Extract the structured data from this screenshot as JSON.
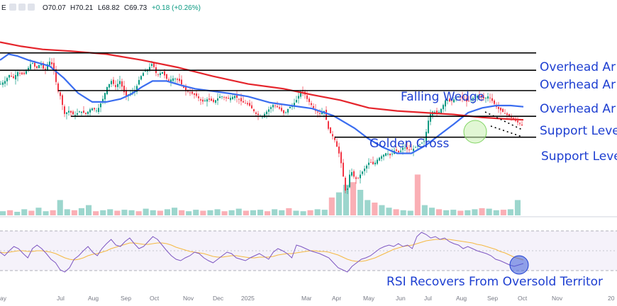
{
  "header": {
    "symbol_mark": "E",
    "open": "O70.07",
    "high": "H70.21",
    "low": "L68.82",
    "close": "C69.73",
    "change": "+0.18 (+0.26%)"
  },
  "colors": {
    "ma_short": "#3a6df0",
    "ma_long": "#e5252c",
    "up_candle": "#089981",
    "down_candle": "#f23645",
    "annotation": "#1e3fd1",
    "rsi_line": "#7e57c2",
    "rsi_signal": "#f5b942",
    "level_line": "#000000"
  },
  "annotations": {
    "overhead_1": "Overhead Ar",
    "overhead_2": "Overhead Ar",
    "overhead_3": "Overhead Ar",
    "falling_wedge": "Falling Wedge",
    "support_1": "Support Leve",
    "golden_cross": "Golden Cross",
    "support_2": "Support Leve",
    "rsi_note": "RSI Recovers From Oversold Territor"
  },
  "chart_data": {
    "type": "line",
    "title": "",
    "x_axis_labels": [
      "ay",
      "Jul",
      "Aug",
      "Sep",
      "Oct",
      "Nov",
      "Dec",
      "2025",
      "Mar",
      "Apr",
      "May",
      "Jun",
      "Jul",
      "Aug",
      "Sep",
      "Oct",
      "Nov",
      "20"
    ],
    "price_path": [
      [
        0,
        79.5
      ],
      [
        6,
        80.0
      ],
      [
        12,
        81.0
      ],
      [
        18,
        80.5
      ],
      [
        24,
        81.5
      ],
      [
        32,
        81.0
      ],
      [
        38,
        82.0
      ],
      [
        44,
        83.2
      ],
      [
        50,
        82.0
      ],
      [
        56,
        83.0
      ],
      [
        62,
        81.6
      ],
      [
        68,
        83.4
      ],
      [
        74,
        82.5
      ],
      [
        80,
        78.5
      ],
      [
        84,
        77.5
      ],
      [
        90,
        74.5
      ],
      [
        96,
        75.0
      ],
      [
        104,
        74.2
      ],
      [
        112,
        75.0
      ],
      [
        120,
        74.5
      ],
      [
        128,
        75.5
      ],
      [
        136,
        75.0
      ],
      [
        144,
        77.0
      ],
      [
        150,
        79.0
      ],
      [
        156,
        80.0
      ],
      [
        162,
        79.0
      ],
      [
        168,
        80.0
      ],
      [
        176,
        77.5
      ],
      [
        184,
        78.0
      ],
      [
        190,
        78.5
      ],
      [
        196,
        80.5
      ],
      [
        202,
        81.5
      ],
      [
        208,
        82.0
      ],
      [
        214,
        83.0
      ],
      [
        220,
        81.0
      ],
      [
        228,
        81.5
      ],
      [
        236,
        80.0
      ],
      [
        244,
        80.5
      ],
      [
        252,
        80.0
      ],
      [
        260,
        78.5
      ],
      [
        268,
        78.0
      ],
      [
        276,
        77.5
      ],
      [
        284,
        76.5
      ],
      [
        292,
        77.0
      ],
      [
        300,
        76.5
      ],
      [
        310,
        77.5
      ],
      [
        320,
        77.0
      ],
      [
        330,
        77.5
      ],
      [
        340,
        76.5
      ],
      [
        350,
        76.0
      ],
      [
        360,
        74.5
      ],
      [
        368,
        74.0
      ],
      [
        376,
        75.0
      ],
      [
        384,
        76.0
      ],
      [
        392,
        75.5
      ],
      [
        400,
        74.5
      ],
      [
        406,
        75.5
      ],
      [
        412,
        76.0
      ],
      [
        418,
        77.0
      ],
      [
        424,
        78.5
      ],
      [
        428,
        78.0
      ],
      [
        432,
        77.0
      ],
      [
        438,
        76.0
      ],
      [
        444,
        75.0
      ],
      [
        450,
        74.5
      ],
      [
        456,
        75.0
      ],
      [
        462,
        72.0
      ],
      [
        466,
        71.0
      ],
      [
        470,
        70.5
      ],
      [
        474,
        69.0
      ],
      [
        478,
        67.5
      ],
      [
        482,
        65.0
      ],
      [
        485,
        62.0
      ],
      [
        488,
        61.0
      ],
      [
        491,
        64.0
      ],
      [
        494,
        65.0
      ],
      [
        498,
        64.0
      ],
      [
        502,
        63.5
      ],
      [
        508,
        64.5
      ],
      [
        514,
        65.5
      ],
      [
        520,
        66.5
      ],
      [
        526,
        66.0
      ],
      [
        532,
        67.0
      ],
      [
        538,
        67.5
      ],
      [
        544,
        68.0
      ],
      [
        550,
        67.5
      ],
      [
        556,
        68.5
      ],
      [
        562,
        68.0
      ],
      [
        568,
        69.0
      ],
      [
        574,
        68.5
      ],
      [
        580,
        68.5
      ],
      [
        586,
        69.0
      ],
      [
        592,
        69.5
      ],
      [
        598,
        70.0
      ],
      [
        602,
        73.0
      ],
      [
        606,
        74.5
      ],
      [
        610,
        75.0
      ],
      [
        616,
        74.5
      ],
      [
        622,
        75.5
      ],
      [
        628,
        77.0
      ],
      [
        634,
        76.5
      ],
      [
        640,
        77.0
      ],
      [
        646,
        77.5
      ],
      [
        652,
        77.0
      ],
      [
        658,
        76.5
      ],
      [
        664,
        77.0
      ],
      [
        670,
        77.5
      ],
      [
        676,
        77.5
      ],
      [
        682,
        77.0
      ],
      [
        688,
        77.5
      ],
      [
        694,
        76.5
      ],
      [
        700,
        75.5
      ],
      [
        706,
        75.0
      ],
      [
        712,
        74.5
      ],
      [
        718,
        74.0
      ],
      [
        724,
        73.5
      ],
      [
        730,
        73.0
      ],
      [
        736,
        72.5
      ]
    ],
    "series": [
      {
        "name": "",
        "color": "#3a6df0",
        "points": [
          [
            0,
            83.5
          ],
          [
            12,
            84.5
          ],
          [
            24,
            84.2
          ],
          [
            40,
            83.5
          ],
          [
            55,
            83.0
          ],
          [
            70,
            82.5
          ],
          [
            90,
            80.5
          ],
          [
            110,
            78.0
          ],
          [
            130,
            76.5
          ],
          [
            150,
            76.5
          ],
          [
            170,
            77.0
          ],
          [
            185,
            77.8
          ],
          [
            200,
            79.0
          ],
          [
            215,
            80.0
          ],
          [
            235,
            80.0
          ],
          [
            255,
            79.3
          ],
          [
            275,
            78.7
          ],
          [
            300,
            78.3
          ],
          [
            325,
            77.9
          ],
          [
            350,
            77.4
          ],
          [
            380,
            76.4
          ],
          [
            410,
            75.9
          ],
          [
            440,
            75.4
          ],
          [
            470,
            74.2
          ],
          [
            500,
            72.1
          ],
          [
            520,
            70.3
          ],
          [
            540,
            68.9
          ],
          [
            560,
            67.9
          ],
          [
            580,
            67.9
          ],
          [
            600,
            69.2
          ],
          [
            620,
            71.0
          ],
          [
            640,
            72.8
          ],
          [
            660,
            74.7
          ],
          [
            680,
            75.5
          ],
          [
            700,
            75.9
          ],
          [
            720,
            75.9
          ],
          [
            738,
            75.7
          ]
        ]
      },
      {
        "name": "",
        "color": "#e5252c",
        "points": [
          [
            0,
            86.5
          ],
          [
            30,
            85.8
          ],
          [
            60,
            85.3
          ],
          [
            100,
            85.0
          ],
          [
            150,
            84.5
          ],
          [
            200,
            83.5
          ],
          [
            250,
            82.3
          ],
          [
            300,
            80.8
          ],
          [
            350,
            79.5
          ],
          [
            400,
            78.7
          ],
          [
            440,
            77.7
          ],
          [
            480,
            76.8
          ],
          [
            520,
            75.5
          ],
          [
            560,
            75.0
          ],
          [
            600,
            74.7
          ],
          [
            640,
            74.4
          ],
          [
            680,
            73.9
          ],
          [
            720,
            73.6
          ],
          [
            738,
            73.5
          ]
        ]
      }
    ],
    "key_levels": [
      {
        "label": "Overhead Ar",
        "value": 84.7
      },
      {
        "label": "Overhead Ar",
        "value": 81.8
      },
      {
        "label": "Overhead Ar",
        "value": 78.4
      },
      {
        "label": "Support Leve",
        "value": 74.1
      },
      {
        "label": "Support Leve",
        "value": 70.6
      }
    ],
    "volume_relative": [
      0.08,
      0.1,
      0.07,
      0.12,
      0.09,
      0.15,
      0.08,
      0.1,
      0.3,
      0.12,
      0.1,
      0.14,
      0.2,
      0.08,
      0.1,
      0.12,
      0.09,
      0.11,
      0.1,
      0.08,
      0.13,
      0.1,
      0.09,
      0.12,
      0.15,
      0.1,
      0.08,
      0.11,
      0.09,
      0.1,
      0.12,
      0.08,
      0.1,
      0.13,
      0.09,
      0.1,
      0.11,
      0.08,
      0.12,
      0.1,
      0.14,
      0.09,
      0.08,
      0.1,
      0.12,
      0.11,
      0.35,
      0.45,
      0.6,
      0.65,
      0.5,
      0.3,
      0.25,
      0.2,
      0.15,
      0.12,
      0.1,
      0.09,
      0.8,
      0.2,
      0.15,
      0.12,
      0.1,
      0.11,
      0.09,
      0.1,
      0.12,
      0.14,
      0.13,
      0.1,
      0.11,
      0.12,
      0.3
    ],
    "rsi": {
      "upper": 70,
      "lower": 30,
      "mid": 50,
      "values": [
        50,
        45,
        52,
        58,
        55,
        48,
        42,
        55,
        60,
        55,
        48,
        40,
        35,
        25,
        22,
        28,
        40,
        45,
        52,
        58,
        50,
        45,
        55,
        62,
        68,
        60,
        58,
        65,
        70,
        62,
        55,
        58,
        65,
        72,
        68,
        60,
        52,
        45,
        40,
        38,
        42,
        45,
        50,
        48,
        42,
        38,
        35,
        40,
        45,
        50,
        48,
        42,
        40,
        38,
        42,
        45,
        48,
        44,
        40,
        50,
        55,
        52,
        48,
        42,
        60,
        58,
        55,
        52,
        50,
        48,
        45,
        42,
        35,
        28,
        25,
        22,
        30,
        35,
        40,
        42,
        45,
        50,
        55,
        58,
        60,
        58,
        62,
        58,
        60,
        55,
        72,
        78,
        75,
        70,
        72,
        68,
        70,
        65,
        62,
        60,
        55,
        58,
        55,
        52,
        50,
        48,
        45,
        40,
        38,
        35,
        32,
        30,
        32,
        34
      ],
      "signal": [
        50,
        49,
        50,
        51,
        52,
        52,
        51,
        51,
        52,
        52,
        51,
        50,
        48,
        45,
        42,
        40,
        39,
        40,
        42,
        45,
        47,
        48,
        50,
        52,
        55,
        57,
        59,
        61,
        63,
        63,
        62,
        61,
        61,
        62,
        63,
        63,
        62,
        60,
        57,
        55,
        53,
        51,
        50,
        49,
        48,
        46,
        44,
        43,
        43,
        44,
        45,
        45,
        44,
        43,
        42,
        42,
        43,
        43,
        43,
        44,
        46,
        47,
        48,
        48,
        49,
        50,
        51,
        52,
        52,
        51,
        51,
        50,
        48,
        46,
        43,
        40,
        38,
        37,
        37,
        38,
        40,
        42,
        45,
        48,
        51,
        54,
        56,
        58,
        59,
        60,
        62,
        64,
        66,
        67,
        68,
        68,
        68,
        68,
        67,
        66,
        65,
        64,
        63,
        61,
        60,
        58,
        56,
        54,
        51,
        49,
        46,
        43,
        41,
        39
      ]
    }
  }
}
